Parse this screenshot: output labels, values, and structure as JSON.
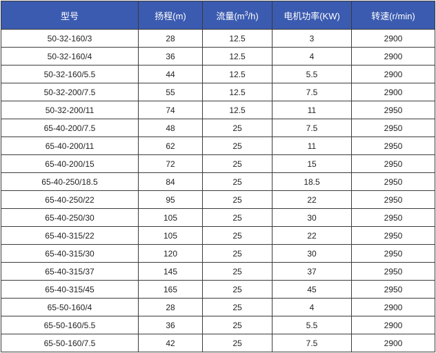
{
  "header": {
    "model": "型号",
    "head": "扬程(m)",
    "flow_prefix": "流量(m",
    "flow_sup": "3",
    "flow_suffix": "/h)",
    "power": "电机功率(KW)",
    "speed": "转速(r/min)"
  },
  "colors": {
    "header_bg": "#3b5bb0",
    "header_text": "#ffffff",
    "border": "#3a3a3a"
  },
  "rows": [
    [
      "50-32-160/3",
      "28",
      "12.5",
      "3",
      "2900"
    ],
    [
      "50-32-160/4",
      "36",
      "12.5",
      "4",
      "2900"
    ],
    [
      "50-32-160/5.5",
      "44",
      "12.5",
      "5.5",
      "2900"
    ],
    [
      "50-32-200/7.5",
      "55",
      "12.5",
      "7.5",
      "2900"
    ],
    [
      "50-32-200/11",
      "74",
      "12.5",
      "11",
      "2950"
    ],
    [
      "65-40-200/7.5",
      "48",
      "25",
      "7.5",
      "2950"
    ],
    [
      "65-40-200/11",
      "62",
      "25",
      "11",
      "2950"
    ],
    [
      "65-40-200/15",
      "72",
      "25",
      "15",
      "2950"
    ],
    [
      "65-40-250/18.5",
      "84",
      "25",
      "18.5",
      "2950"
    ],
    [
      "65-40-250/22",
      "95",
      "25",
      "22",
      "2950"
    ],
    [
      "65-40-250/30",
      "105",
      "25",
      "30",
      "2950"
    ],
    [
      "65-40-315/22",
      "105",
      "25",
      "22",
      "2950"
    ],
    [
      "65-40-315/30",
      "120",
      "25",
      "30",
      "2950"
    ],
    [
      "65-40-315/37",
      "145",
      "25",
      "37",
      "2950"
    ],
    [
      "65-40-315/45",
      "165",
      "25",
      "45",
      "2950"
    ],
    [
      "65-50-160/4",
      "28",
      "25",
      "4",
      "2900"
    ],
    [
      "65-50-160/5.5",
      "36",
      "25",
      "5.5",
      "2900"
    ],
    [
      "65-50-160/7.5",
      "42",
      "25",
      "7.5",
      "2900"
    ]
  ]
}
